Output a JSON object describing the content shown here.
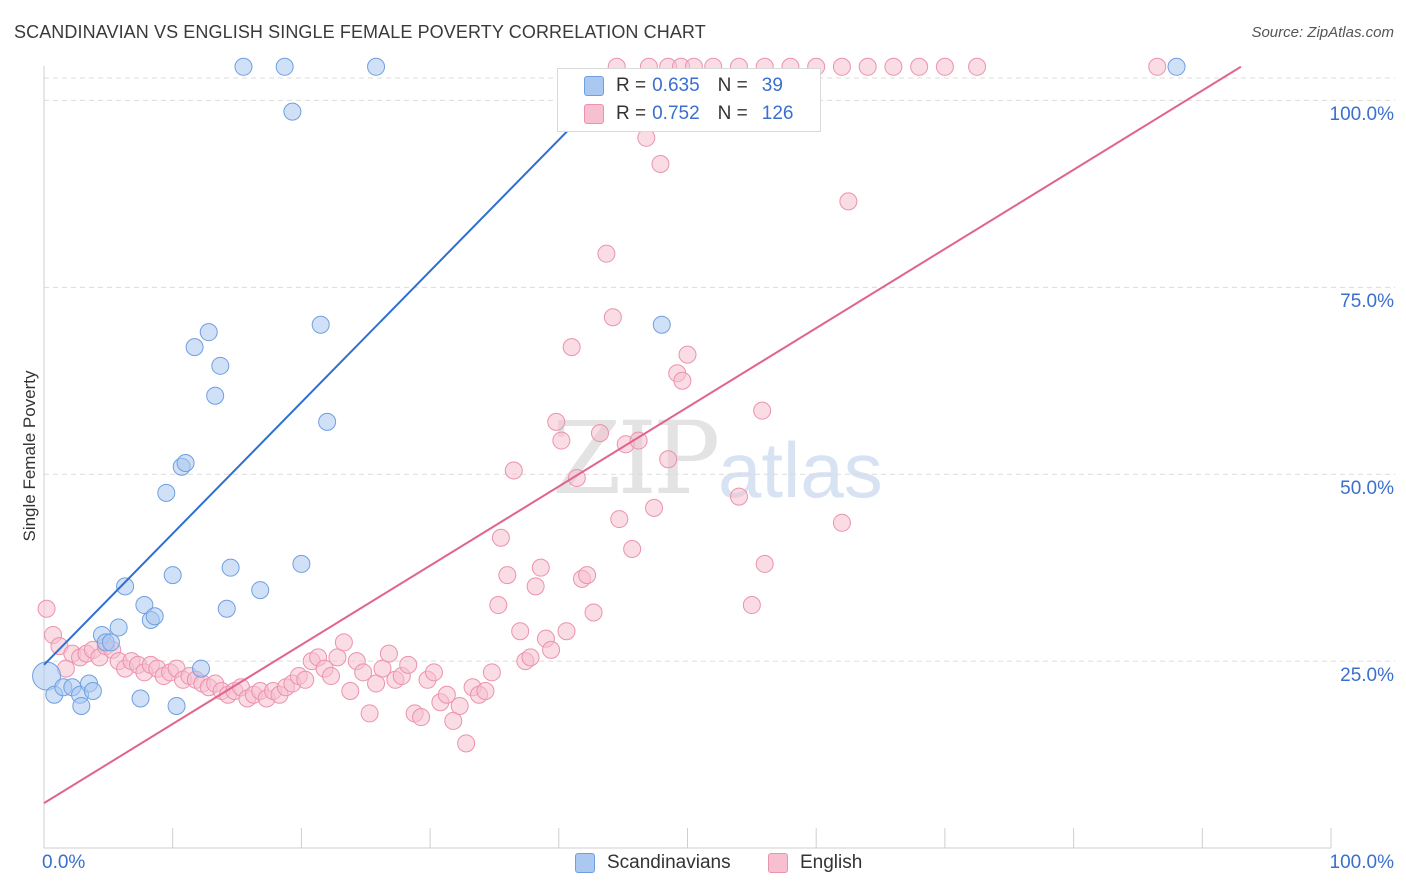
{
  "title": "SCANDINAVIAN VS ENGLISH SINGLE FEMALE POVERTY CORRELATION CHART",
  "source": "Source: ZipAtlas.com",
  "watermark": {
    "zip": "ZIP",
    "atlas": "atlas"
  },
  "colors": {
    "scandinavian_fill": "#aac8f0",
    "scandinavian_stroke": "#6f9fe0",
    "scandinavian_line": "#2f6fd0",
    "english_fill": "#f6c0d0",
    "english_stroke": "#ec92ad",
    "english_line": "#e0648e",
    "axis_label": "#3a6fd0"
  },
  "legend": {
    "rows": [
      {
        "r_label": "R =",
        "r_value": "0.635",
        "n_label": "N =",
        "n_value": "39"
      },
      {
        "r_label": "R =",
        "r_value": "0.752",
        "n_label": "N =",
        "n_value": "126"
      }
    ],
    "bottom": [
      "Scandinavians",
      "English"
    ]
  },
  "axes": {
    "ylabel": "Single Female Poverty",
    "x_tick_labels": [
      "0.0%",
      "100.0%"
    ],
    "y_tick_labels": [
      "25.0%",
      "50.0%",
      "75.0%",
      "100.0%"
    ]
  },
  "chart_data": {
    "type": "scatter",
    "title": "SCANDINAVIAN VS ENGLISH SINGLE FEMALE POVERTY CORRELATION CHART",
    "xlabel": "",
    "ylabel": "Single Female Poverty",
    "xlim": [
      0,
      100
    ],
    "ylim": [
      0,
      103
    ],
    "grid": true,
    "series": [
      {
        "name": "Scandinavians",
        "R": 0.635,
        "N": 39,
        "trend": {
          "x0": 0,
          "y0": 24.5,
          "x1": 43,
          "y1": 100
        },
        "points": [
          [
            0.2,
            23.0
          ],
          [
            0.8,
            20.5
          ],
          [
            1.5,
            21.5
          ],
          [
            2.2,
            21.5
          ],
          [
            2.8,
            20.5
          ],
          [
            2.9,
            19.0
          ],
          [
            3.5,
            22.0
          ],
          [
            3.8,
            21.0
          ],
          [
            4.5,
            28.5
          ],
          [
            4.8,
            27.5
          ],
          [
            5.2,
            27.5
          ],
          [
            5.8,
            29.5
          ],
          [
            6.3,
            35.0
          ],
          [
            7.5,
            20.0
          ],
          [
            7.8,
            32.5
          ],
          [
            8.3,
            30.5
          ],
          [
            8.6,
            31.0
          ],
          [
            9.5,
            47.5
          ],
          [
            10.0,
            36.5
          ],
          [
            10.3,
            19.0
          ],
          [
            10.7,
            51.0
          ],
          [
            11.0,
            51.5
          ],
          [
            11.7,
            67.0
          ],
          [
            12.2,
            24.0
          ],
          [
            12.8,
            69.0
          ],
          [
            13.3,
            60.5
          ],
          [
            13.7,
            64.5
          ],
          [
            14.2,
            32.0
          ],
          [
            14.5,
            37.5
          ],
          [
            16.8,
            34.5
          ],
          [
            20.0,
            38.0
          ],
          [
            21.5,
            70.0
          ],
          [
            22.0,
            57.0
          ],
          [
            15.5,
            104.5
          ],
          [
            18.7,
            104.5
          ],
          [
            19.3,
            98.5
          ],
          [
            25.8,
            104.5
          ],
          [
            48.0,
            70.0
          ],
          [
            88.0,
            104.5
          ]
        ]
      },
      {
        "name": "English",
        "R": 0.752,
        "N": 126,
        "trend": {
          "x0": 0,
          "y0": 6.0,
          "x1": 93,
          "y1": 104.5
        },
        "points": [
          [
            0.2,
            32.0
          ],
          [
            0.7,
            28.5
          ],
          [
            1.2,
            27.0
          ],
          [
            1.7,
            24.0
          ],
          [
            2.2,
            26.0
          ],
          [
            2.8,
            25.5
          ],
          [
            3.3,
            26.0
          ],
          [
            3.8,
            26.5
          ],
          [
            4.3,
            25.5
          ],
          [
            4.8,
            27.0
          ],
          [
            5.3,
            26.5
          ],
          [
            5.8,
            25.0
          ],
          [
            6.3,
            24.0
          ],
          [
            6.8,
            25.0
          ],
          [
            7.3,
            24.5
          ],
          [
            7.8,
            23.5
          ],
          [
            8.3,
            24.5
          ],
          [
            8.8,
            24.0
          ],
          [
            9.3,
            23.0
          ],
          [
            9.8,
            23.5
          ],
          [
            10.3,
            24.0
          ],
          [
            10.8,
            22.5
          ],
          [
            11.3,
            23.0
          ],
          [
            11.8,
            22.5
          ],
          [
            12.3,
            22.0
          ],
          [
            12.8,
            21.5
          ],
          [
            13.3,
            22.0
          ],
          [
            13.8,
            21.0
          ],
          [
            14.3,
            20.5
          ],
          [
            14.8,
            21.0
          ],
          [
            15.3,
            21.5
          ],
          [
            15.8,
            20.0
          ],
          [
            16.3,
            20.5
          ],
          [
            16.8,
            21.0
          ],
          [
            17.3,
            20.0
          ],
          [
            17.8,
            21.0
          ],
          [
            18.3,
            20.5
          ],
          [
            18.8,
            21.5
          ],
          [
            19.3,
            22.0
          ],
          [
            19.8,
            23.0
          ],
          [
            20.3,
            22.5
          ],
          [
            20.8,
            25.0
          ],
          [
            21.3,
            25.5
          ],
          [
            21.8,
            24.0
          ],
          [
            22.3,
            23.0
          ],
          [
            22.8,
            25.5
          ],
          [
            23.3,
            27.5
          ],
          [
            23.8,
            21.0
          ],
          [
            24.3,
            25.0
          ],
          [
            24.8,
            23.5
          ],
          [
            25.3,
            18.0
          ],
          [
            25.8,
            22.0
          ],
          [
            26.3,
            24.0
          ],
          [
            26.8,
            26.0
          ],
          [
            27.3,
            22.5
          ],
          [
            27.8,
            23.0
          ],
          [
            28.3,
            24.5
          ],
          [
            28.8,
            18.0
          ],
          [
            29.3,
            17.5
          ],
          [
            29.8,
            22.5
          ],
          [
            30.3,
            23.5
          ],
          [
            30.8,
            19.5
          ],
          [
            31.3,
            20.5
          ],
          [
            31.8,
            17.0
          ],
          [
            32.3,
            19.0
          ],
          [
            32.8,
            14.0
          ],
          [
            33.3,
            21.5
          ],
          [
            33.8,
            20.5
          ],
          [
            34.3,
            21.0
          ],
          [
            34.8,
            23.5
          ],
          [
            35.3,
            32.5
          ],
          [
            35.5,
            41.5
          ],
          [
            36.0,
            36.5
          ],
          [
            36.5,
            50.5
          ],
          [
            37.0,
            29.0
          ],
          [
            37.4,
            25.0
          ],
          [
            37.8,
            25.5
          ],
          [
            38.2,
            35.0
          ],
          [
            38.6,
            37.5
          ],
          [
            39.0,
            28.0
          ],
          [
            39.4,
            26.5
          ],
          [
            39.8,
            57.0
          ],
          [
            40.2,
            54.5
          ],
          [
            40.6,
            29.0
          ],
          [
            41.0,
            67.0
          ],
          [
            41.4,
            49.5
          ],
          [
            41.8,
            36.0
          ],
          [
            42.2,
            36.5
          ],
          [
            42.7,
            31.5
          ],
          [
            43.2,
            55.5
          ],
          [
            43.7,
            79.5
          ],
          [
            44.2,
            71.0
          ],
          [
            44.7,
            44.0
          ],
          [
            45.2,
            54.0
          ],
          [
            45.7,
            40.0
          ],
          [
            46.2,
            54.5
          ],
          [
            46.8,
            95.0
          ],
          [
            47.4,
            45.5
          ],
          [
            47.9,
            91.5
          ],
          [
            48.5,
            52.0
          ],
          [
            49.2,
            63.5
          ],
          [
            49.6,
            62.5
          ],
          [
            50.0,
            66.0
          ],
          [
            54.0,
            47.0
          ],
          [
            55.0,
            32.5
          ],
          [
            56.0,
            38.0
          ],
          [
            62.0,
            43.5
          ],
          [
            62.5,
            86.5
          ],
          [
            55.8,
            58.5
          ],
          [
            44.5,
            104.5
          ],
          [
            47.0,
            104.5
          ],
          [
            48.5,
            104.5
          ],
          [
            49.5,
            104.5
          ],
          [
            50.5,
            104.5
          ],
          [
            52.0,
            104.5
          ],
          [
            54.0,
            104.5
          ],
          [
            56.0,
            104.5
          ],
          [
            58.0,
            104.5
          ],
          [
            60.0,
            104.5
          ],
          [
            62.0,
            104.5
          ],
          [
            64.0,
            104.5
          ],
          [
            66.0,
            104.5
          ],
          [
            68.0,
            104.5
          ],
          [
            70.0,
            104.5
          ],
          [
            72.5,
            104.5
          ],
          [
            86.5,
            104.5
          ]
        ]
      }
    ]
  }
}
